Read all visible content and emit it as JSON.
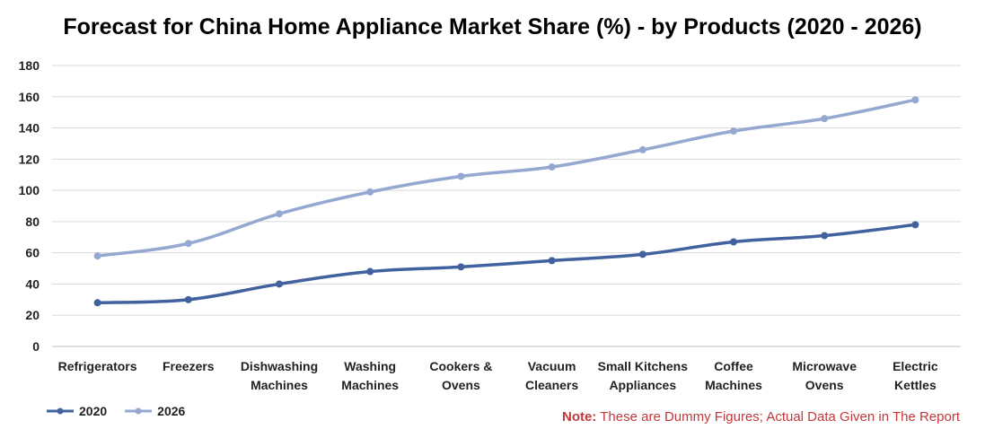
{
  "title": "Forecast for China Home Appliance Market Share (%) - by Products (2020 - 2026)",
  "note": {
    "label": "Note:",
    "text": " These are Dummy Figures; Actual Data Given in The Report"
  },
  "colors": {
    "series_2020": "#41619f",
    "series_2026": "#94a8d1",
    "grid": "#d9d9d9",
    "note": "#c0393b"
  },
  "chart_data": {
    "type": "line",
    "title": "Forecast for China Home Appliance Market Share (%) - by Products (2020 - 2026)",
    "categories": [
      "Refrigerators",
      "Freezers",
      "Dishwashing Machines",
      "Washing Machines",
      "Cookers & Ovens",
      "Vacuum Cleaners",
      "Small Kitchens Appliances",
      "Coffee Machines",
      "Microwave Ovens",
      "Electric Kettles"
    ],
    "category_lines": [
      [
        "Refrigerators"
      ],
      [
        "Freezers"
      ],
      [
        "Dishwashing",
        "Machines"
      ],
      [
        "Washing",
        "Machines"
      ],
      [
        "Cookers &",
        "Ovens"
      ],
      [
        "Vacuum",
        "Cleaners"
      ],
      [
        "Small Kitchens",
        "Appliances"
      ],
      [
        "Coffee",
        "Machines"
      ],
      [
        "Microwave",
        "Ovens"
      ],
      [
        "Electric",
        "Kettles"
      ]
    ],
    "series": [
      {
        "name": "2020",
        "color": "#41619f",
        "values": [
          28,
          30,
          40,
          48,
          51,
          55,
          59,
          67,
          71,
          78
        ]
      },
      {
        "name": "2026",
        "color": "#94a8d1",
        "values": [
          58,
          66,
          85,
          99,
          109,
          115,
          126,
          138,
          146,
          158
        ]
      }
    ],
    "ylim": [
      0,
      180
    ],
    "yticks": [
      "0",
      "20",
      "40",
      "60",
      "80",
      "100",
      "120",
      "140",
      "160",
      "180"
    ],
    "grid": true,
    "legend_position": "bottom-left",
    "xlabel": "",
    "ylabel": ""
  }
}
